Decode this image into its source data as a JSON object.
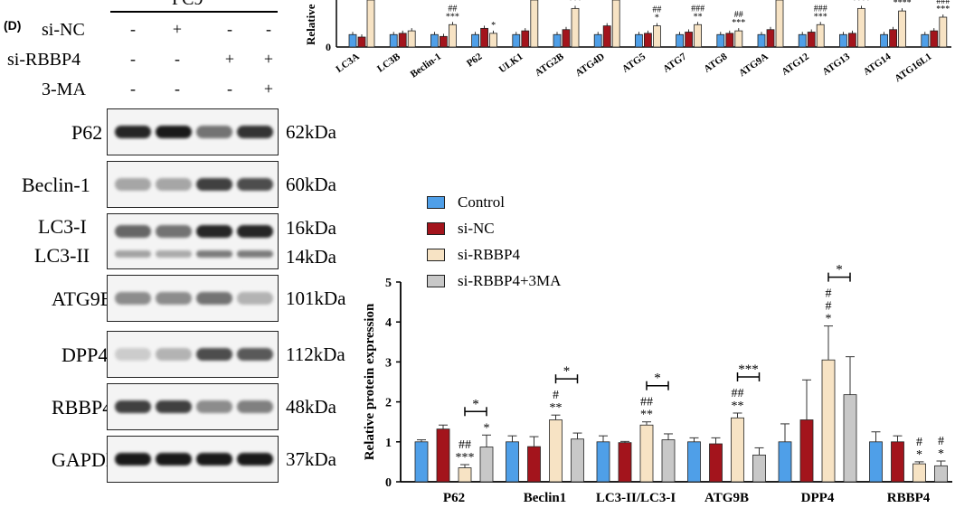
{
  "panel_letter": "(D)",
  "cell_line": "PC9",
  "conditions": [
    {
      "name": "si-NC",
      "signs": [
        "-",
        "+",
        "-",
        "-"
      ]
    },
    {
      "name": "si-RBBP4",
      "signs": [
        "-",
        "-",
        "+",
        "+"
      ]
    },
    {
      "name": "3-MA",
      "signs": [
        "-",
        "-",
        "-",
        "+"
      ]
    }
  ],
  "blots": [
    {
      "label": "P62",
      "kda": [
        "62kDa"
      ],
      "bands": [
        0.85,
        0.9,
        0.55,
        0.8
      ]
    },
    {
      "label": "Beclin-1",
      "kda": [
        "60kDa"
      ],
      "bands": [
        0.35,
        0.35,
        0.75,
        0.7
      ]
    },
    {
      "label": "LC3-I",
      "label2": "LC3-II",
      "kda": [
        "16kDa",
        "14kDa"
      ],
      "bands": [
        0.6,
        0.55,
        0.85,
        0.85
      ]
    },
    {
      "label": "ATG9B",
      "kda": [
        "101kDa"
      ],
      "bands": [
        0.45,
        0.45,
        0.55,
        0.3
      ]
    },
    {
      "label": "DPP4",
      "kda": [
        "112kDa"
      ],
      "bands": [
        0.2,
        0.3,
        0.7,
        0.65
      ]
    },
    {
      "label": "RBBP4",
      "kda": [
        "48kDa"
      ],
      "bands": [
        0.75,
        0.75,
        0.45,
        0.5
      ]
    },
    {
      "label": "GAPDH",
      "kda": [
        "37kDa"
      ],
      "bands": [
        0.9,
        0.9,
        0.9,
        0.9
      ]
    }
  ],
  "colors": {
    "control": "#4f9fe8",
    "si_nc": "#a3141c",
    "si_rbbp4": "#f7e3c4",
    "si_rbbp4_3ma": "#c8c8c8"
  },
  "chart_data": [
    {
      "type": "bar",
      "ylabel": "Relative",
      "categories": [
        "LC3A",
        "LC3B",
        "Beclin-1",
        "P62",
        "ULK1",
        "ATG2B",
        "ATG4D",
        "ATG5",
        "ATG7",
        "ATG8",
        "ATG9A",
        "ATG12",
        "ATG13",
        "ATG14",
        "ATG16L1"
      ],
      "series": [
        {
          "name": "Control",
          "values": [
            1,
            1,
            1,
            1,
            1,
            1,
            1,
            1,
            1,
            1,
            1,
            1,
            1,
            1,
            1
          ]
        },
        {
          "name": "si-NC",
          "values": [
            0.8,
            1.1,
            0.85,
            1.5,
            1.3,
            1.4,
            1.7,
            1.1,
            1.2,
            1.1,
            1.4,
            1.2,
            1.1,
            1.4,
            1.3
          ]
        },
        {
          "name": "si-RBBP4",
          "values": [
            7,
            1.3,
            1.8,
            1.1,
            7,
            3.1,
            7,
            1.7,
            1.8,
            1.3,
            7,
            1.8,
            3.1,
            2.9,
            2.4
          ]
        },
        {
          "name": "si-RBBP4+3MA",
          "values": [
            null,
            null,
            null,
            null,
            null,
            null,
            null,
            null,
            null,
            null,
            null,
            null,
            null,
            null,
            null
          ]
        }
      ],
      "annotations": [
        "",
        "",
        "##\n***",
        "*",
        "",
        "***",
        "",
        "##\n*",
        "###\n**",
        "##\n***",
        "",
        "###\n***",
        "####\n****",
        "#####\n****",
        "###\n***"
      ],
      "yticks": [
        "0"
      ]
    },
    {
      "type": "bar",
      "ylabel": "Relative protein expression",
      "categories": [
        "P62",
        "Beclin1",
        "LC3-II/LC3-I",
        "ATG9B",
        "DPP4",
        "RBBP4"
      ],
      "ylim": [
        0,
        5
      ],
      "yticks": [
        0,
        1,
        2,
        3,
        4,
        5
      ],
      "series": [
        {
          "name": "Control",
          "values": [
            1.0,
            1.0,
            1.0,
            1.0,
            1.0,
            1.0
          ],
          "err": [
            0.05,
            0.15,
            0.15,
            0.1,
            0.45,
            0.25
          ]
        },
        {
          "name": "si-NC",
          "values": [
            1.32,
            0.88,
            0.98,
            0.95,
            1.55,
            1.0
          ],
          "err": [
            0.1,
            0.25,
            0.03,
            0.15,
            1.0,
            0.15
          ]
        },
        {
          "name": "si-RBBP4",
          "values": [
            0.35,
            1.55,
            1.42,
            1.6,
            3.05,
            0.45
          ],
          "err": [
            0.08,
            0.12,
            0.08,
            0.12,
            0.85,
            0.05
          ]
        },
        {
          "name": "si-RBBP4+3MA",
          "values": [
            0.87,
            1.07,
            1.05,
            0.67,
            2.18,
            0.4
          ],
          "err": [
            0.3,
            0.15,
            0.15,
            0.18,
            0.95,
            0.12
          ]
        }
      ],
      "annotations": [
        {
          "bar": 2,
          "text": [
            "##",
            "***"
          ]
        },
        {
          "bar": 3,
          "text": [
            "*"
          ]
        },
        {
          "bar": 6,
          "text": [
            "#",
            "**"
          ]
        },
        {
          "bar": 10,
          "text": [
            "##",
            "**"
          ]
        },
        {
          "bar": 14,
          "text": [
            "##",
            "**"
          ]
        },
        {
          "bar": 18,
          "text": [
            "#",
            "#",
            "*"
          ]
        },
        {
          "bar": 22,
          "text": [
            "#",
            "*"
          ]
        },
        {
          "bar": 23,
          "text": [
            "#",
            "*"
          ]
        }
      ],
      "brackets": [
        {
          "group": 0,
          "text": "*"
        },
        {
          "group": 1,
          "text": "*"
        },
        {
          "group": 2,
          "text": "*"
        },
        {
          "group": 3,
          "text": "***"
        },
        {
          "group": 4,
          "text": "*"
        }
      ]
    }
  ],
  "legend": [
    "Control",
    "si-NC",
    "si-RBBP4",
    "si-RBBP4+3MA"
  ]
}
